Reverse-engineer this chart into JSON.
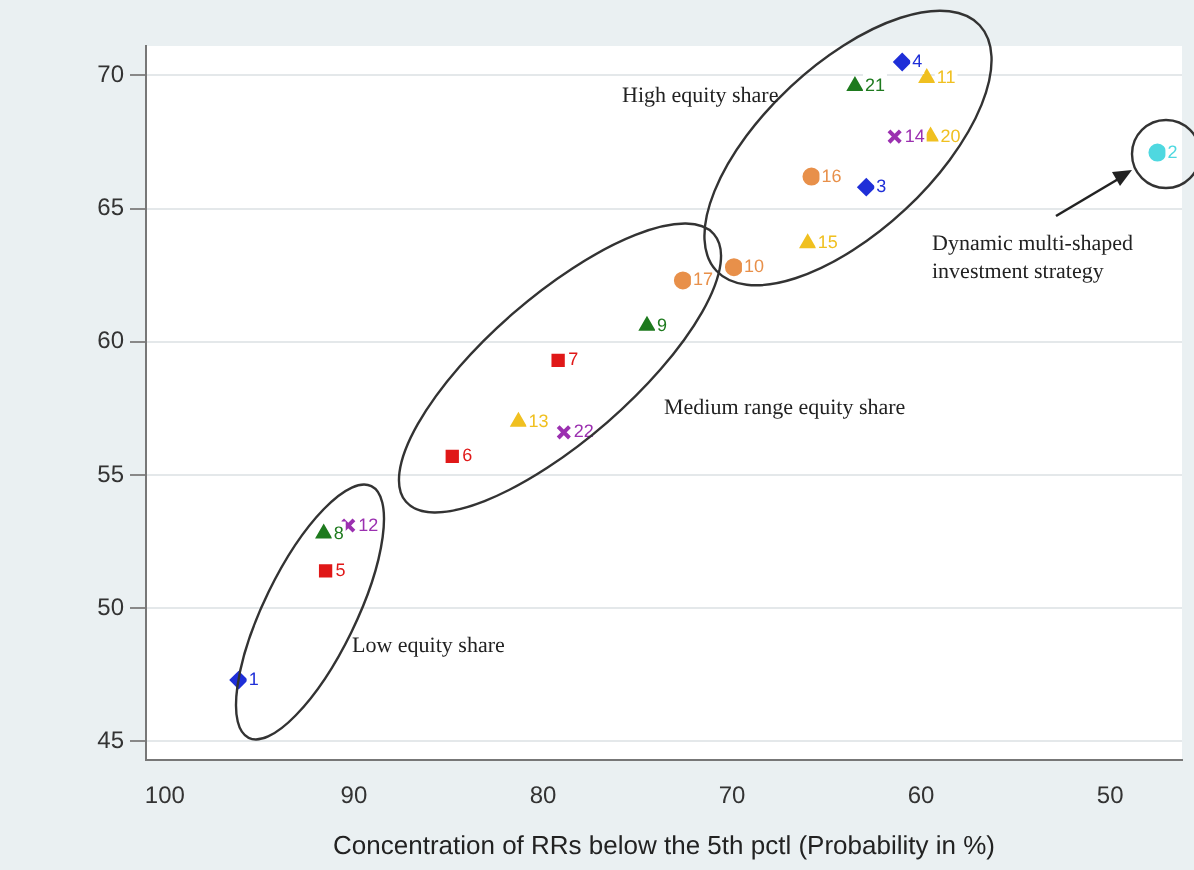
{
  "chart_data": {
    "type": "scatter",
    "xlabel": "Concentration of RRs below the 5th pctl (Probability in %)",
    "xlim": [
      101,
      46.2
    ],
    "xticks": [
      100,
      90,
      80,
      70,
      60,
      50
    ],
    "ylim": [
      44.3,
      71.1
    ],
    "yticks": [
      45,
      50,
      55,
      60,
      65,
      70
    ],
    "grid": "y",
    "legend": false,
    "series": [
      {
        "color": "#1f2fd8",
        "marker": "diamond",
        "x": [
          96.1,
          62.9,
          61.0
        ],
        "values": [
          47.3,
          65.8,
          70.5
        ]
      },
      {
        "color": "#e01818",
        "marker": "square",
        "x": [
          91.5,
          84.8,
          79.2
        ],
        "values": [
          51.4,
          55.7,
          59.3
        ]
      },
      {
        "color": "#1e7a1e",
        "marker": "triangle",
        "x": [
          91.6,
          74.5,
          63.5
        ],
        "values": [
          52.8,
          60.6,
          69.6
        ]
      },
      {
        "color": "#9b30b0",
        "marker": "cross",
        "x": [
          90.3,
          78.9,
          61.4
        ],
        "values": [
          53.1,
          56.6,
          67.7
        ]
      },
      {
        "color": "#f0c020",
        "marker": "triangle",
        "x": [
          81.3,
          66.0,
          59.5,
          59.7
        ],
        "values": [
          57.0,
          63.7,
          67.7,
          69.9
        ]
      },
      {
        "color": "#e8904a",
        "marker": "circle",
        "x": [
          72.6,
          69.9,
          65.8
        ],
        "values": [
          62.3,
          62.8,
          66.2
        ]
      },
      {
        "color": "#4fd8e0",
        "marker": "circle",
        "x": [
          47.5
        ],
        "values": [
          67.1
        ]
      }
    ],
    "annotations": [
      {
        "text": "1",
        "x": 96.1,
        "y": 47.3
      },
      {
        "text": "3",
        "x": 62.9,
        "y": 65.8
      },
      {
        "text": "4",
        "x": 61.0,
        "y": 70.5
      },
      {
        "text": "5",
        "x": 91.5,
        "y": 51.4
      },
      {
        "text": "6",
        "x": 84.8,
        "y": 55.7
      },
      {
        "text": "7",
        "x": 79.2,
        "y": 59.3
      },
      {
        "text": "8",
        "x": 91.6,
        "y": 52.8
      },
      {
        "text": "9",
        "x": 74.5,
        "y": 60.6
      },
      {
        "text": "21",
        "x": 63.5,
        "y": 69.6
      },
      {
        "text": "12",
        "x": 90.3,
        "y": 53.1
      },
      {
        "text": "22",
        "x": 78.9,
        "y": 56.6
      },
      {
        "text": "14",
        "x": 61.4,
        "y": 67.7
      },
      {
        "text": "13",
        "x": 81.3,
        "y": 57.0
      },
      {
        "text": "15",
        "x": 66.0,
        "y": 63.7
      },
      {
        "text": "20",
        "x": 59.5,
        "y": 67.7
      },
      {
        "text": "11",
        "x": 59.7,
        "y": 69.9
      },
      {
        "text": "17",
        "x": 72.6,
        "y": 62.3
      },
      {
        "text": "10",
        "x": 69.9,
        "y": 62.8
      },
      {
        "text": "16",
        "x": 65.8,
        "y": 66.2
      },
      {
        "text": "2",
        "x": 47.5,
        "y": 67.1
      },
      "High equity share",
      "Medium range equity share",
      "Low equity share",
      "Dynamic  multi-shaped investment strategy"
    ]
  }
}
